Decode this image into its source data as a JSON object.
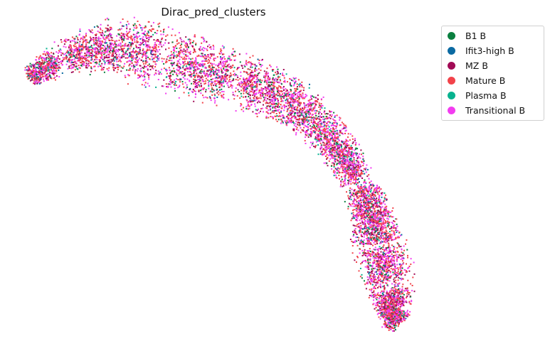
{
  "chart_data": {
    "type": "scatter",
    "title": "Dirac_pred_clusters",
    "xlabel": "",
    "ylabel": "",
    "axes_visible": false,
    "legend_position": "top-right, outside plot",
    "series": [
      {
        "name": "B1 B",
        "color": "#0a7f3f",
        "share": 0.08
      },
      {
        "name": "Ifit3-high B",
        "color": "#0b6aa2",
        "share": 0.04
      },
      {
        "name": "MZ B",
        "color": "#a10a55",
        "share": 0.16
      },
      {
        "name": "Mature B",
        "color": "#f2434a",
        "share": 0.34
      },
      {
        "name": "Plasma B",
        "color": "#07b28f",
        "share": 0.03
      },
      {
        "name": "Transitional B",
        "color": "#f23cf0",
        "share": 0.35
      }
    ]
  }
}
